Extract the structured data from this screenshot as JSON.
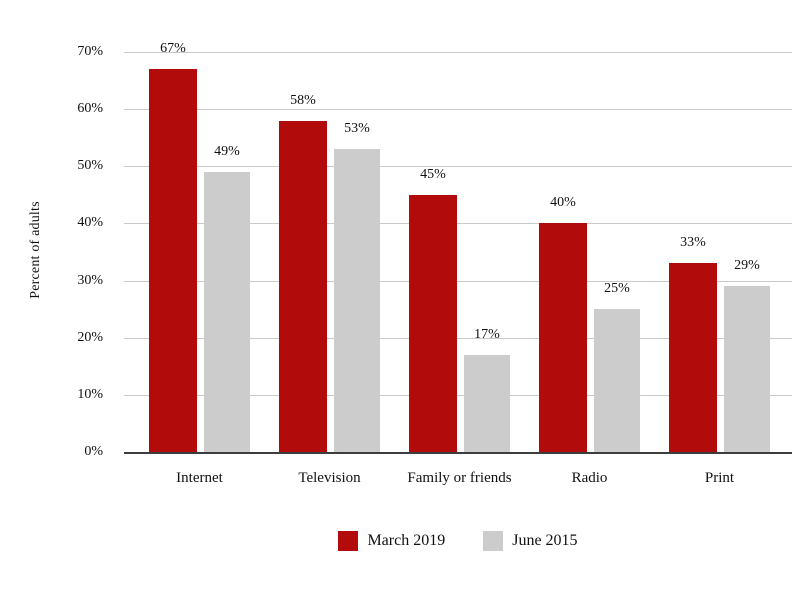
{
  "chart_data": {
    "type": "bar",
    "title": "",
    "ylabel": "Percent of adults",
    "xlabel": "",
    "categories": [
      "Internet",
      "Television",
      "Family or friends",
      "Radio",
      "Print"
    ],
    "series": [
      {
        "name": "March 2019",
        "color": "#b20b0b",
        "values": [
          67,
          58,
          45,
          40,
          33
        ]
      },
      {
        "name": "June 2015",
        "color": "#cccccc",
        "values": [
          49,
          53,
          17,
          25,
          29
        ]
      }
    ],
    "value_labels": [
      [
        "67%",
        "58%",
        "45%",
        "40%",
        "33%"
      ],
      [
        "49%",
        "53%",
        "17%",
        "25%",
        "29%"
      ]
    ],
    "ylim": [
      0,
      70
    ],
    "ytick_step": 10,
    "ytick_labels": [
      "0%",
      "10%",
      "20%",
      "30%",
      "40%",
      "50%",
      "60%",
      "70%"
    ],
    "grid": "horizontal",
    "legend_position": "bottom"
  },
  "colors": {
    "background": "#ffffff",
    "grid": "#c9c9c9",
    "axis": "#3d3d3d",
    "text": "#111111",
    "series_march_2019": "#b20b0b",
    "series_june_2015": "#cccccc"
  }
}
